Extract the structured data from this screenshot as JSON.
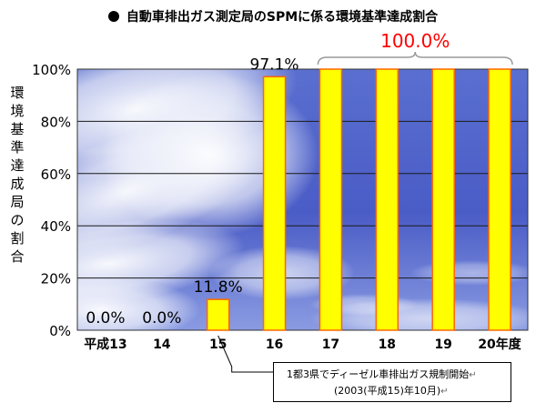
{
  "title": "自動車排出ガス測定局のSPMに係る環境基準達成割合",
  "note": {
    "line1": "1都3県でディーゼル車排出ガス規制開始",
    "line2": "(2003(平成15)年10月)",
    "mark": "↵"
  },
  "bracket_label": "100.0%",
  "colors": {
    "bar_fill": "#ffff00",
    "bar_stroke": "#ff6600",
    "highlight_text": "#ff0000"
  },
  "chart_data": {
    "type": "bar",
    "categories": [
      "平成13",
      "14",
      "15",
      "16",
      "17",
      "18",
      "19",
      "20年度"
    ],
    "values": [
      0.0,
      0.0,
      11.8,
      97.1,
      100.0,
      100.0,
      100.0,
      100.0
    ],
    "value_labels": [
      "0.0%",
      "0.0%",
      "11.8%",
      "97.1%",
      "",
      "",
      "",
      ""
    ],
    "ylabel": "環境基準達成局の割合",
    "ylim": [
      0,
      100
    ],
    "yticks": [
      "0%",
      "20%",
      "40%",
      "60%",
      "80%",
      "100%"
    ],
    "grid": true,
    "background": "sky photo"
  }
}
